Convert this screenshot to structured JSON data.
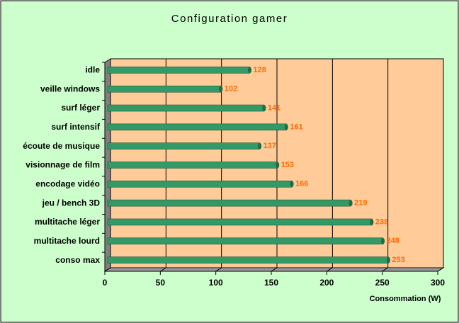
{
  "chart_data": {
    "type": "bar",
    "orientation": "horizontal",
    "title": "Configuration gamer",
    "x_label": "Consommation (W)",
    "categories": [
      "idle",
      "veille windows",
      "surf léger",
      "surf intensif",
      "écoute de musique",
      "visionnage de film",
      "encodage vidéo",
      "jeu / bench 3D",
      "multitache léger",
      "multitache lourd",
      "conso max"
    ],
    "values": [
      128,
      102,
      141,
      161,
      137,
      153,
      166,
      219,
      238,
      248,
      253
    ],
    "color": "#339966",
    "label_color": "#ff6600",
    "xlim": [
      0,
      300
    ],
    "xticks": [
      0,
      50,
      100,
      150,
      200,
      250,
      300
    ],
    "grid": true
  }
}
